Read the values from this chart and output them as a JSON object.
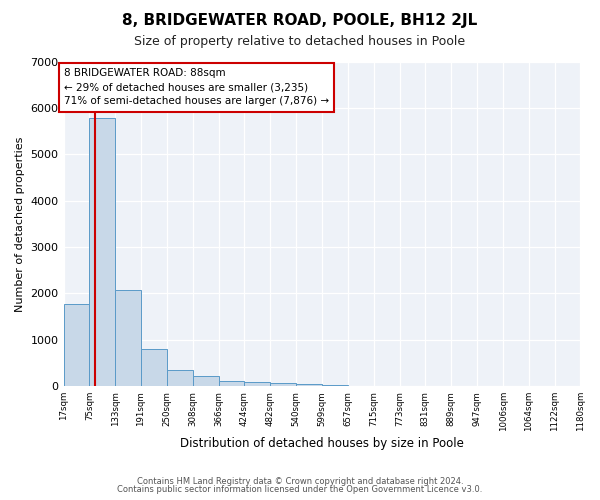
{
  "title": "8, BRIDGEWATER ROAD, POOLE, BH12 2JL",
  "subtitle": "Size of property relative to detached houses in Poole",
  "xlabel": "Distribution of detached houses by size in Poole",
  "ylabel": "Number of detached properties",
  "bar_values": [
    1770,
    5780,
    2080,
    800,
    360,
    220,
    110,
    80,
    60,
    40,
    30,
    0,
    0,
    0,
    0,
    0,
    0,
    0,
    0,
    0
  ],
  "bin_edges": [
    17,
    75,
    133,
    191,
    250,
    308,
    366,
    424,
    482,
    540,
    599,
    657,
    715,
    773,
    831,
    889,
    947,
    1006,
    1064,
    1122,
    1180
  ],
  "tick_labels": [
    "17sqm",
    "75sqm",
    "133sqm",
    "191sqm",
    "250sqm",
    "308sqm",
    "366sqm",
    "424sqm",
    "482sqm",
    "540sqm",
    "599sqm",
    "657sqm",
    "715sqm",
    "773sqm",
    "831sqm",
    "889sqm",
    "947sqm",
    "1006sqm",
    "1064sqm",
    "1122sqm",
    "1180sqm"
  ],
  "bar_color": "#c8d8e8",
  "bar_edge_color": "#5a9ac8",
  "vline_x": 88,
  "vline_color": "#cc0000",
  "annotation_title": "8 BRIDGEWATER ROAD: 88sqm",
  "annotation_line1": "← 29% of detached houses are smaller (3,235)",
  "annotation_line2": "71% of semi-detached houses are larger (7,876) →",
  "annotation_box_color": "#cc0000",
  "ylim": [
    0,
    7000
  ],
  "yticks": [
    0,
    1000,
    2000,
    3000,
    4000,
    5000,
    6000,
    7000
  ],
  "footer_line1": "Contains HM Land Registry data © Crown copyright and database right 2024.",
  "footer_line2": "Contains public sector information licensed under the Open Government Licence v3.0.",
  "bg_color": "#ffffff",
  "plot_bg_color": "#eef2f8"
}
